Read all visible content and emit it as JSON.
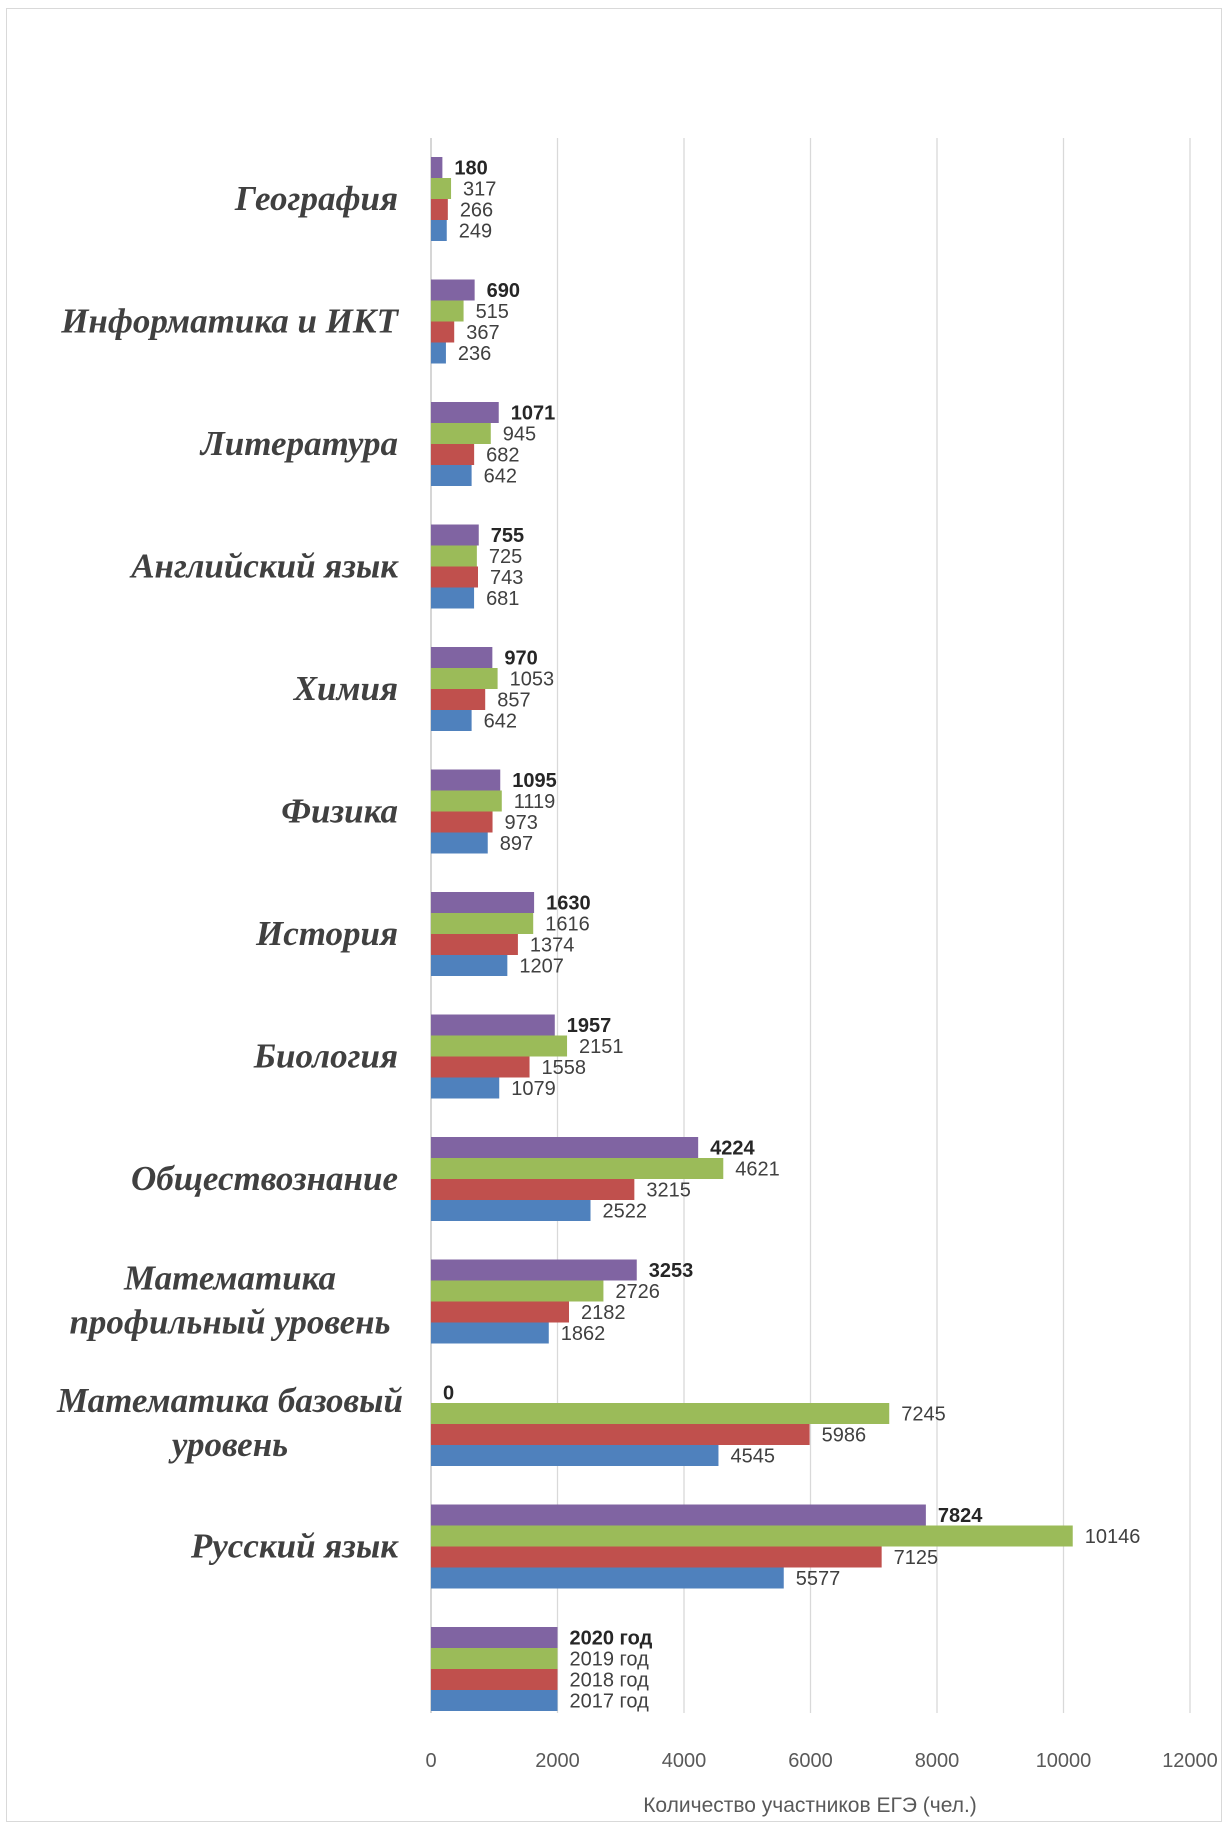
{
  "chart_data": {
    "type": "bar",
    "orientation": "horizontal",
    "categories": [
      "География",
      "Информатика и ИКТ",
      "Литература",
      "Английский язык",
      "Химия",
      "Физика",
      "История",
      "Биология",
      "Обществознание",
      "Математика профильный уровень",
      "Математика базовый уровень",
      "Русский язык",
      ""
    ],
    "series": [
      {
        "name": "2020 год",
        "color": "#8064a2",
        "bold": true,
        "values": [
          180,
          690,
          1071,
          755,
          970,
          1095,
          1630,
          1957,
          4224,
          3253,
          0,
          7824,
          2000
        ]
      },
      {
        "name": "2019 год",
        "color": "#9bbb59",
        "bold": false,
        "values": [
          317,
          515,
          945,
          725,
          1053,
          1119,
          1616,
          2151,
          4621,
          2726,
          7245,
          10146,
          2000
        ]
      },
      {
        "name": "2018 год",
        "color": "#c0504d",
        "bold": false,
        "values": [
          266,
          367,
          682,
          743,
          857,
          973,
          1374,
          1558,
          3215,
          2182,
          5986,
          7125,
          2000
        ]
      },
      {
        "name": "2017 год",
        "color": "#4f81bd",
        "bold": false,
        "values": [
          249,
          236,
          642,
          681,
          642,
          897,
          1207,
          1079,
          2522,
          1862,
          4545,
          5577,
          2000
        ]
      }
    ],
    "data_labels": [
      [
        "180",
        "317",
        "266",
        "249"
      ],
      [
        "690",
        "515",
        "367",
        "236"
      ],
      [
        "1071",
        "945",
        "682",
        "642"
      ],
      [
        "755",
        "725",
        "743",
        "681"
      ],
      [
        "970",
        "1053",
        "857",
        "642"
      ],
      [
        "1095",
        "1119",
        "973",
        "897"
      ],
      [
        "1630",
        "1616",
        "1374",
        "1207"
      ],
      [
        "1957",
        "2151",
        "1558",
        "1079"
      ],
      [
        "4224",
        "4621",
        "3215",
        "2522"
      ],
      [
        "3253",
        "2726",
        "2182",
        "1862"
      ],
      [
        "0",
        "7245",
        "5986",
        "4545"
      ],
      [
        "7824",
        "10146",
        "7125",
        "5577"
      ],
      [
        "2020 год",
        "2019 год",
        "2018 год",
        "2017 год"
      ]
    ],
    "xlim": [
      0,
      12000
    ],
    "xticks": [
      0,
      2000,
      4000,
      6000,
      8000,
      10000,
      12000
    ],
    "xlabel": "Количество участников ЕГЭ (чел.)",
    "grid": true,
    "legend": "none"
  }
}
